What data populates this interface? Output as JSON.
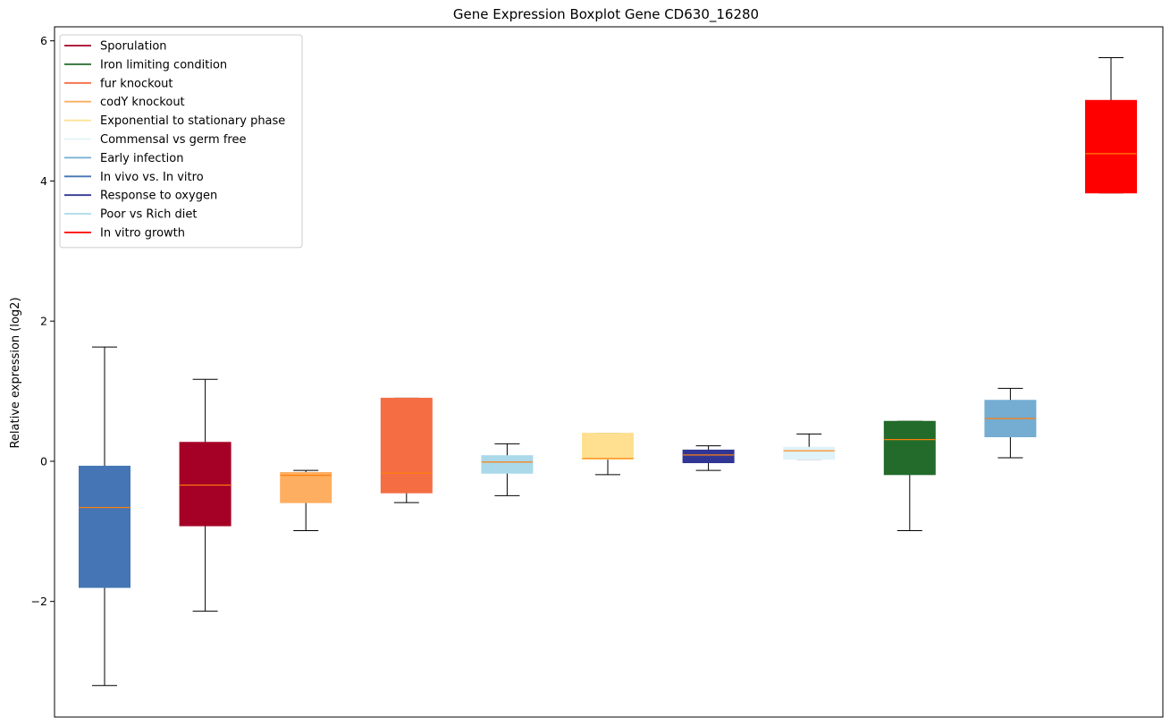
{
  "chart_data": {
    "type": "boxplot",
    "title": "Gene Expression Boxplot Gene CD630_16280",
    "xlabel": "",
    "ylabel": "Relative expression (log2)",
    "ylim": [
      -3.65,
      6.2
    ],
    "yticks": [
      -2,
      0,
      2,
      4,
      6
    ],
    "ytick_labels": [
      "−2",
      "0",
      "2",
      "4",
      "6"
    ],
    "grid": false,
    "legend_position": "top-left",
    "median_color": "#ff7f0e",
    "legend": [
      {
        "label": "Sporulation",
        "color": "#a50026"
      },
      {
        "label": "Iron limiting condition",
        "color": "#226b2b"
      },
      {
        "label": "fur knockout",
        "color": "#f46d43"
      },
      {
        "label": "codY knockout",
        "color": "#fdae61"
      },
      {
        "label": "Exponential to stationary phase",
        "color": "#fee090"
      },
      {
        "label": "Commensal vs germ free",
        "color": "#e0f3f8"
      },
      {
        "label": "Early infection",
        "color": "#74add1"
      },
      {
        "label": "In vivo vs. In vitro",
        "color": "#4575b4"
      },
      {
        "label": "Response to oxygen",
        "color": "#313695"
      },
      {
        "label": "Poor vs Rich diet",
        "color": "#abd9e9"
      },
      {
        "label": "In vitro growth",
        "color": "#ff0000"
      }
    ],
    "boxes": [
      {
        "color": "#4575b4",
        "whisker_low": -3.2,
        "q1": -1.8,
        "median": -0.66,
        "q3": -0.07,
        "whisker_high": 1.63
      },
      {
        "color": "#a50026",
        "whisker_low": -2.14,
        "q1": -0.92,
        "median": -0.34,
        "q3": 0.27,
        "whisker_high": 1.17
      },
      {
        "color": "#fdae61",
        "whisker_low": -0.99,
        "q1": -0.59,
        "median": -0.2,
        "q3": -0.16,
        "whisker_high": -0.13
      },
      {
        "color": "#f46d43",
        "whisker_low": -0.59,
        "q1": -0.45,
        "median": -0.17,
        "q3": 0.9,
        "whisker_high": 0.9
      },
      {
        "color": "#abd9e9",
        "whisker_low": -0.49,
        "q1": -0.17,
        "median": -0.01,
        "q3": 0.08,
        "whisker_high": 0.25
      },
      {
        "color": "#fee090",
        "whisker_low": -0.19,
        "q1": 0.03,
        "median": 0.04,
        "q3": 0.4,
        "whisker_high": 0.4
      },
      {
        "color": "#313695",
        "whisker_low": -0.13,
        "q1": -0.02,
        "median": 0.09,
        "q3": 0.16,
        "whisker_high": 0.22
      },
      {
        "color": "#e0f3f8",
        "whisker_low": 0.03,
        "q1": 0.03,
        "median": 0.15,
        "q3": 0.2,
        "whisker_high": 0.39
      },
      {
        "color": "#226b2b",
        "whisker_low": -0.99,
        "q1": -0.19,
        "median": 0.31,
        "q3": 0.57,
        "whisker_high": 0.57
      },
      {
        "color": "#74add1",
        "whisker_low": 0.05,
        "q1": 0.35,
        "median": 0.61,
        "q3": 0.87,
        "whisker_high": 1.04
      },
      {
        "color": "#ff0000",
        "whisker_low": 3.83,
        "q1": 3.83,
        "median": 4.39,
        "q3": 5.15,
        "whisker_high": 5.76
      }
    ]
  }
}
